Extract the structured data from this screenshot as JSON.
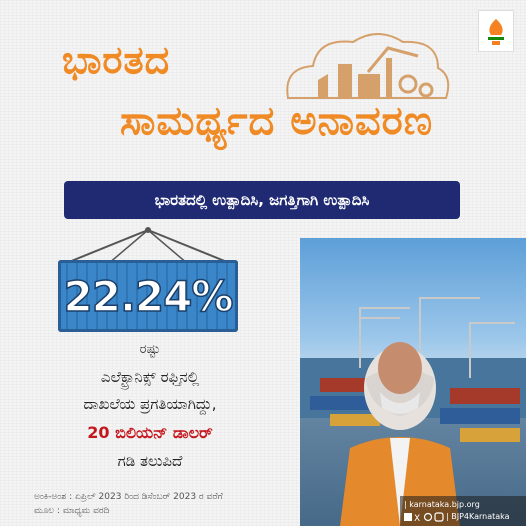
{
  "title": {
    "line1": "ಭಾರತದ",
    "line2": "ಸಾಮರ್ಥ್ಯದ ಅನಾವರಣ"
  },
  "banner": "ಭಾರತದಲ್ಲಿ ಉತ್ಪಾದಿಸಿ, ಜಗತ್ತಿಗಾಗಿ ಉತ್ಪಾದಿಸಿ",
  "stat": {
    "value": "22.24%",
    "suffix": "ರಷ್ಟು"
  },
  "body": {
    "line1": "ಎಲೆಕ್ಟ್ರಾನಿಕ್ಸ್ ರಫ್ತಿನಲ್ಲಿ",
    "line2": "ದಾಖಲೆಯ ಪ್ರಗತಿಯಾಗಿದ್ದು,",
    "line3": "20 ಬಿಲಿಯನ್ ಡಾಲರ್",
    "line4": "ಗಡಿ ತಲುಪಿದೆ"
  },
  "footer": {
    "period": "ಅಂಕಿ-ಅಂಶ : ಏಪ್ರಿಲ್ 2023 ರಿಂದ ಡಿಸೆಂಬರ್ 2023 ರ ವರೆಗೆ",
    "source": "ಮೂಲ : ಮಾಧ್ಯಮ ವರದಿ"
  },
  "handles": {
    "website": "| karnataka.bjp.org",
    "social": "| BJP4Karnataka"
  },
  "colors": {
    "title": "#ef8a24",
    "banner": "#1f2a73",
    "highlight": "#c4161c",
    "container": "#3a86c8"
  },
  "icons": [
    "bjp-logo",
    "factory-illustration",
    "container-icon",
    "facebook-icon",
    "x-icon",
    "threads-icon",
    "instagram-icon"
  ]
}
